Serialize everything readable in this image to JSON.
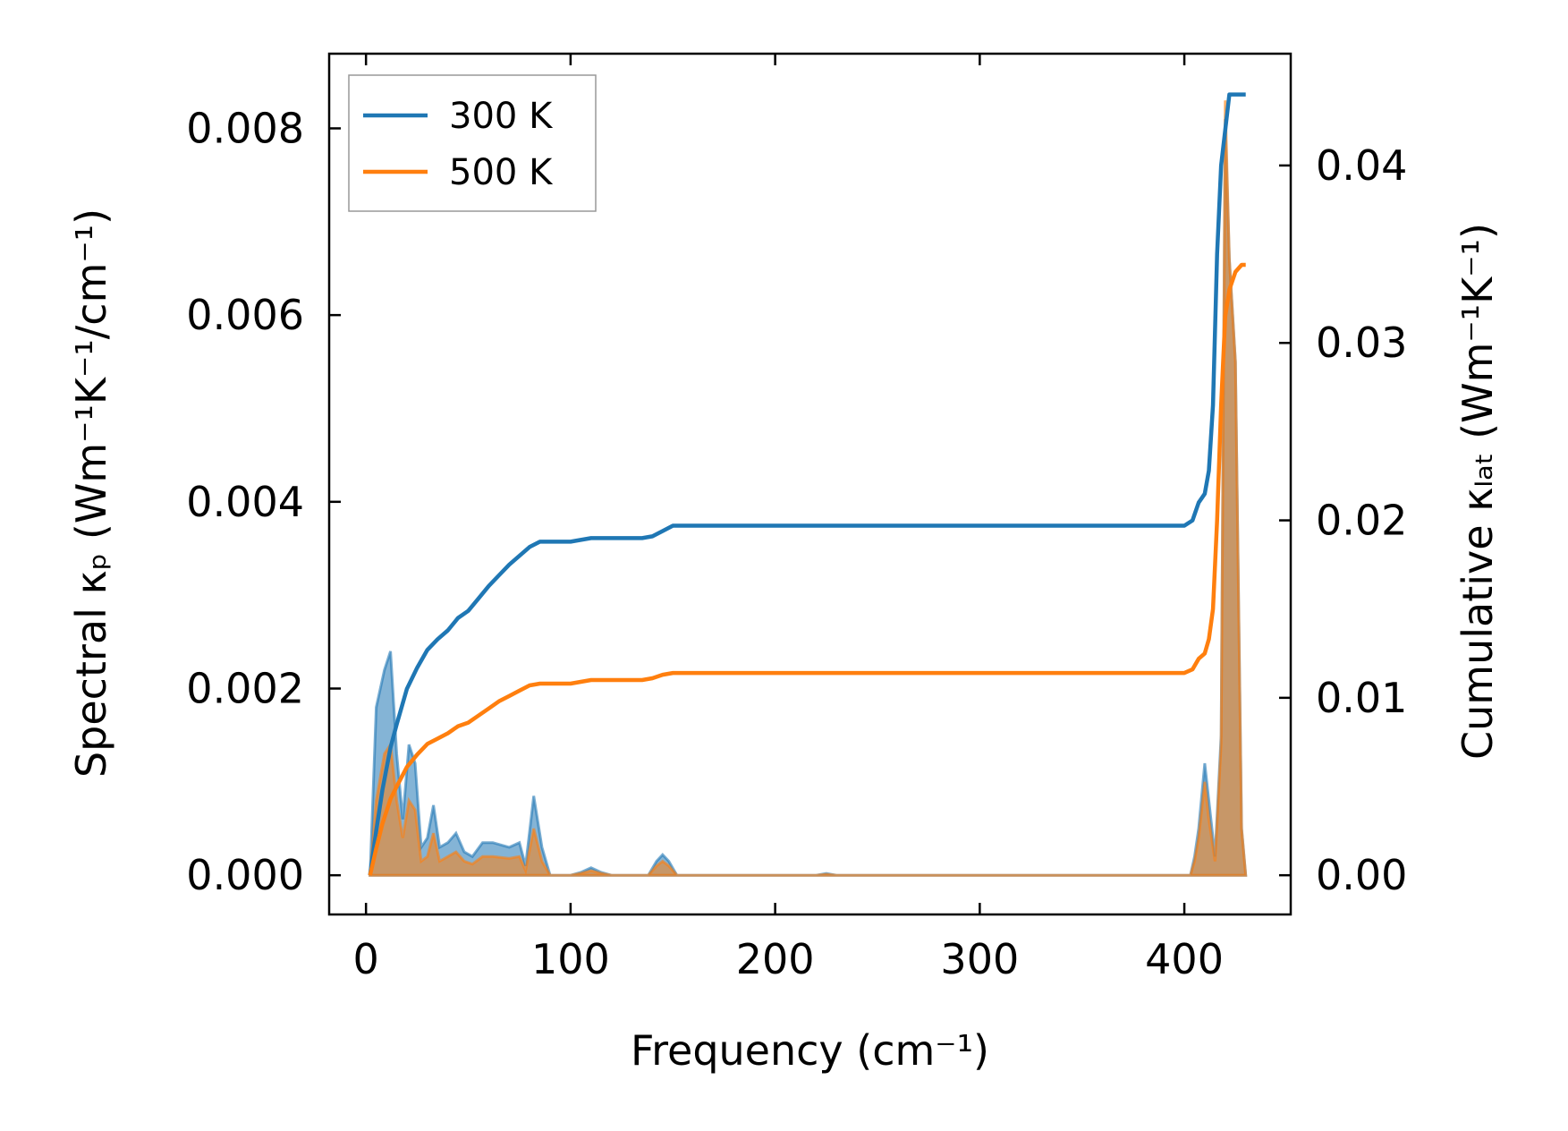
{
  "chart_data": {
    "type": "line",
    "xlabel": "Frequency (cm⁻¹)",
    "ylabel_left": "Spectral κₚ (Wm⁻¹K⁻¹/cm⁻¹)",
    "ylabel_right": "Cumulative κₗₐₜ (Wm⁻¹K⁻¹)",
    "xlim": [
      -18,
      452
    ],
    "ylim_left": [
      -0.00042,
      0.0088
    ],
    "ylim_right": [
      -0.00221,
      0.0463
    ],
    "x_ticks": [
      0,
      100,
      200,
      300,
      400
    ],
    "y_ticks_left": [
      0.0,
      0.002,
      0.004,
      0.006,
      0.008
    ],
    "y_tick_labels_left": [
      "0.000",
      "0.002",
      "0.004",
      "0.006",
      "0.008"
    ],
    "y_ticks_right": [
      0.0,
      0.01,
      0.02,
      0.03,
      0.04
    ],
    "y_tick_labels_right": [
      "0.00",
      "0.01",
      "0.02",
      "0.03",
      "0.04"
    ],
    "legend": {
      "placement": "upper-left",
      "entries": [
        "300 K",
        "500 K"
      ]
    },
    "series": [
      {
        "name": "300 K",
        "color": "#1f77b4",
        "spectral_axis": "left",
        "spectral": {
          "x": [
            2,
            5,
            9,
            12,
            15,
            18,
            21,
            24,
            27,
            30,
            33,
            36,
            40,
            44,
            48,
            52,
            57,
            62,
            70,
            75,
            78,
            82,
            86,
            90,
            100,
            105,
            110,
            115,
            120,
            138,
            142,
            145,
            148,
            152,
            160,
            200,
            220,
            225,
            230,
            300,
            395,
            403,
            405,
            407,
            410,
            412,
            415,
            418,
            420,
            422,
            425,
            428,
            430
          ],
          "y": [
            0.0,
            0.0018,
            0.0022,
            0.0024,
            0.0013,
            0.0006,
            0.0014,
            0.0012,
            0.0003,
            0.0004,
            0.00075,
            0.0003,
            0.00035,
            0.00045,
            0.00025,
            0.0002,
            0.00035,
            0.00035,
            0.0003,
            0.00035,
            0.0001,
            0.00085,
            0.0003,
            0.0,
            0.0,
            3e-05,
            8e-05,
            3e-05,
            0.0,
            0.0,
            0.00015,
            0.00022,
            0.00015,
            0.0,
            0.0,
            0.0,
            0.0,
            2e-05,
            0.0,
            0.0,
            0.0,
            0.0,
            0.0002,
            0.0005,
            0.0012,
            0.0008,
            0.0002,
            0.0015,
            0.0081,
            0.0066,
            0.0055,
            0.0005,
            0.0
          ]
        },
        "cumulative_axis": "right",
        "cumulative": {
          "x": [
            2,
            5,
            8,
            12,
            15,
            20,
            25,
            30,
            35,
            40,
            45,
            50,
            55,
            60,
            65,
            70,
            75,
            80,
            85,
            90,
            100,
            105,
            110,
            115,
            120,
            135,
            140,
            145,
            150,
            200,
            300,
            400,
            404,
            407,
            410,
            412,
            414,
            416,
            418,
            420,
            422,
            425,
            428,
            430
          ],
          "y": [
            0.0,
            0.0025,
            0.0048,
            0.0072,
            0.0085,
            0.0105,
            0.0117,
            0.0127,
            0.0133,
            0.0138,
            0.0145,
            0.0149,
            0.0156,
            0.0163,
            0.0169,
            0.0175,
            0.018,
            0.0185,
            0.0188,
            0.0188,
            0.0188,
            0.0189,
            0.019,
            0.019,
            0.019,
            0.019,
            0.0191,
            0.0194,
            0.0197,
            0.0197,
            0.0197,
            0.0197,
            0.02,
            0.021,
            0.0215,
            0.0228,
            0.0265,
            0.035,
            0.04,
            0.042,
            0.044,
            0.044,
            0.044,
            0.044
          ]
        }
      },
      {
        "name": "500 K",
        "color": "#ff7f0e",
        "spectral_axis": "left",
        "spectral": {
          "x": [
            2,
            5,
            9,
            12,
            15,
            18,
            21,
            24,
            27,
            30,
            33,
            36,
            40,
            44,
            48,
            52,
            57,
            62,
            70,
            75,
            78,
            82,
            86,
            90,
            100,
            105,
            110,
            115,
            120,
            138,
            142,
            145,
            148,
            152,
            160,
            200,
            220,
            225,
            230,
            300,
            395,
            403,
            405,
            407,
            410,
            412,
            415,
            418,
            420,
            422,
            425,
            428,
            430
          ],
          "y": [
            0.0,
            0.0008,
            0.0013,
            0.0014,
            0.0008,
            0.0004,
            0.0008,
            0.0007,
            0.00015,
            0.0002,
            0.00045,
            0.00015,
            0.0002,
            0.00025,
            0.00015,
            0.00012,
            0.0002,
            0.0002,
            0.00018,
            0.0002,
            5e-05,
            0.0005,
            0.00015,
            0.0,
            0.0,
            2e-05,
            5e-05,
            2e-05,
            0.0,
            0.0,
            0.0001,
            0.00015,
            0.0001,
            0.0,
            0.0,
            0.0,
            0.0,
            1e-05,
            0.0,
            0.0,
            0.0,
            0.0,
            0.00015,
            0.0004,
            0.001,
            0.0006,
            0.00015,
            0.0014,
            0.0083,
            0.0066,
            0.0055,
            0.0005,
            0.0
          ]
        },
        "cumulative_axis": "right",
        "cumulative": {
          "x": [
            2,
            5,
            8,
            12,
            15,
            20,
            25,
            30,
            35,
            40,
            45,
            50,
            55,
            60,
            65,
            70,
            75,
            80,
            85,
            90,
            100,
            105,
            110,
            115,
            120,
            135,
            140,
            145,
            150,
            200,
            300,
            400,
            404,
            407,
            410,
            412,
            414,
            416,
            418,
            420,
            422,
            425,
            428,
            430
          ],
          "y": [
            0.0,
            0.0015,
            0.0029,
            0.0043,
            0.005,
            0.0061,
            0.0068,
            0.0074,
            0.0077,
            0.008,
            0.0084,
            0.0086,
            0.009,
            0.0094,
            0.0098,
            0.0101,
            0.0104,
            0.0107,
            0.0108,
            0.0108,
            0.0108,
            0.0109,
            0.011,
            0.011,
            0.011,
            0.011,
            0.0111,
            0.0113,
            0.0114,
            0.0114,
            0.0114,
            0.0114,
            0.0116,
            0.0122,
            0.0125,
            0.0133,
            0.015,
            0.02,
            0.0265,
            0.0315,
            0.033,
            0.034,
            0.0344,
            0.0344
          ]
        }
      }
    ]
  }
}
